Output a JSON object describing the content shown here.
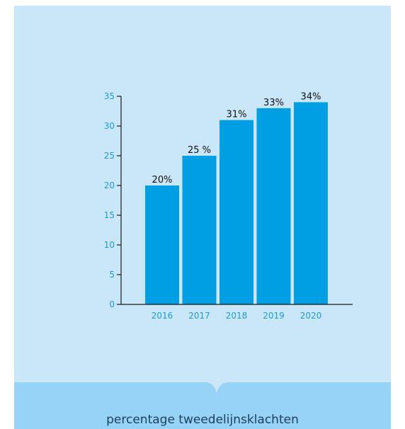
{
  "colors": {
    "panel": "#c9e7f8",
    "band": "#97d3f6",
    "bar": "#009fe3",
    "axis": "#1a1a1a",
    "tick_text": "#1d9ad6",
    "label_text": "#111111",
    "caption_text": "#1d3f5c"
  },
  "caption": "percentage tweedelijnsklachten",
  "chart_data": {
    "type": "bar",
    "title": "",
    "xlabel": "",
    "ylabel": "",
    "categories": [
      "2016",
      "2017",
      "2018",
      "2019",
      "2020"
    ],
    "values": [
      20,
      25,
      31,
      33,
      34
    ],
    "data_labels": [
      "20%",
      "25 %",
      "31%",
      "33%",
      "34%"
    ],
    "ylim": [
      0,
      35
    ],
    "yticks": [
      0,
      5,
      10,
      15,
      20,
      25,
      30,
      35
    ],
    "grid": false,
    "legend": "none"
  }
}
